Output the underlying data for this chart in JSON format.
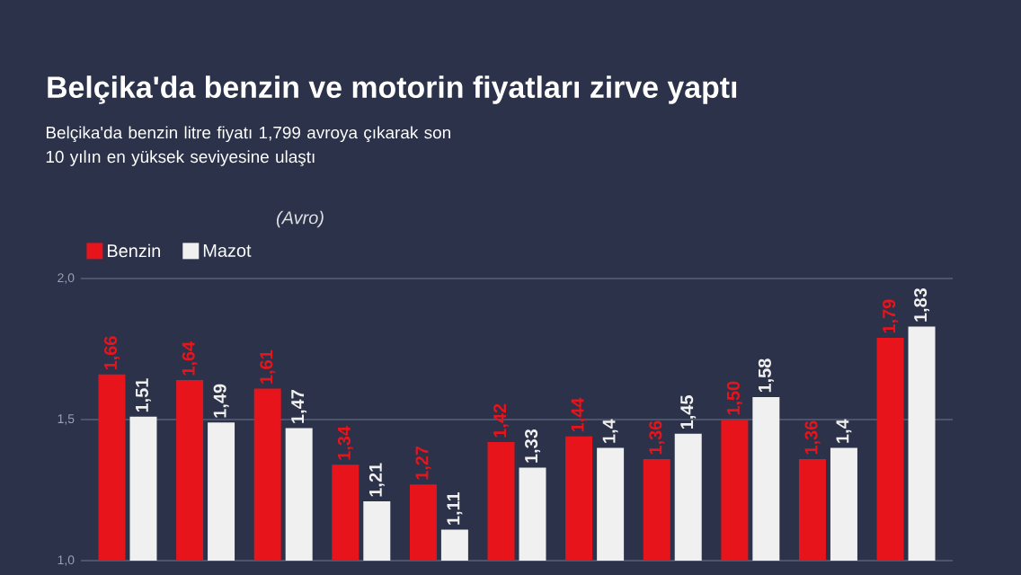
{
  "chart_data": {
    "type": "bar",
    "title": "Belçika'da benzin ve motorin fiyatları zirve yaptı",
    "subtitle": "Belçika'da benzin litre fiyatı 1,799 avroya çıkarak son 10 yılın en yüksek seviyesine ulaştı",
    "annotations": [
      "(Avro)"
    ],
    "categories": [
      null,
      null,
      null,
      null,
      null,
      null,
      null,
      null,
      null,
      null,
      null
    ],
    "series": [
      {
        "name": "Benzin",
        "color": "#e8141c",
        "values": [
          1.66,
          1.64,
          1.61,
          1.34,
          1.27,
          1.42,
          1.44,
          1.36,
          1.5,
          1.36,
          1.79
        ],
        "value_labels": [
          "1,66",
          "1,64",
          "1,61",
          "1,34",
          "1,27",
          "1,42",
          "1,44",
          "1,36",
          "1,50",
          "1,36",
          "1,79"
        ]
      },
      {
        "name": "Mazot",
        "color": "#f0f0f0",
        "values": [
          1.51,
          1.49,
          1.47,
          1.21,
          1.11,
          1.33,
          1.4,
          1.45,
          1.58,
          1.4,
          1.83
        ],
        "value_labels": [
          "1,51",
          "1,49",
          "1,47",
          "1,21",
          "1,11",
          "1,33",
          "1,4",
          "1,45",
          "1,58",
          "1,4",
          "1,83"
        ]
      }
    ],
    "ylim": [
      1.0,
      2.0
    ],
    "yticks": [
      {
        "value": 1.0,
        "label": "1,0"
      },
      {
        "value": 1.5,
        "label": "1,5"
      },
      {
        "value": 2.0,
        "label": "2,0"
      }
    ],
    "grid": "y",
    "legend": "top left"
  }
}
